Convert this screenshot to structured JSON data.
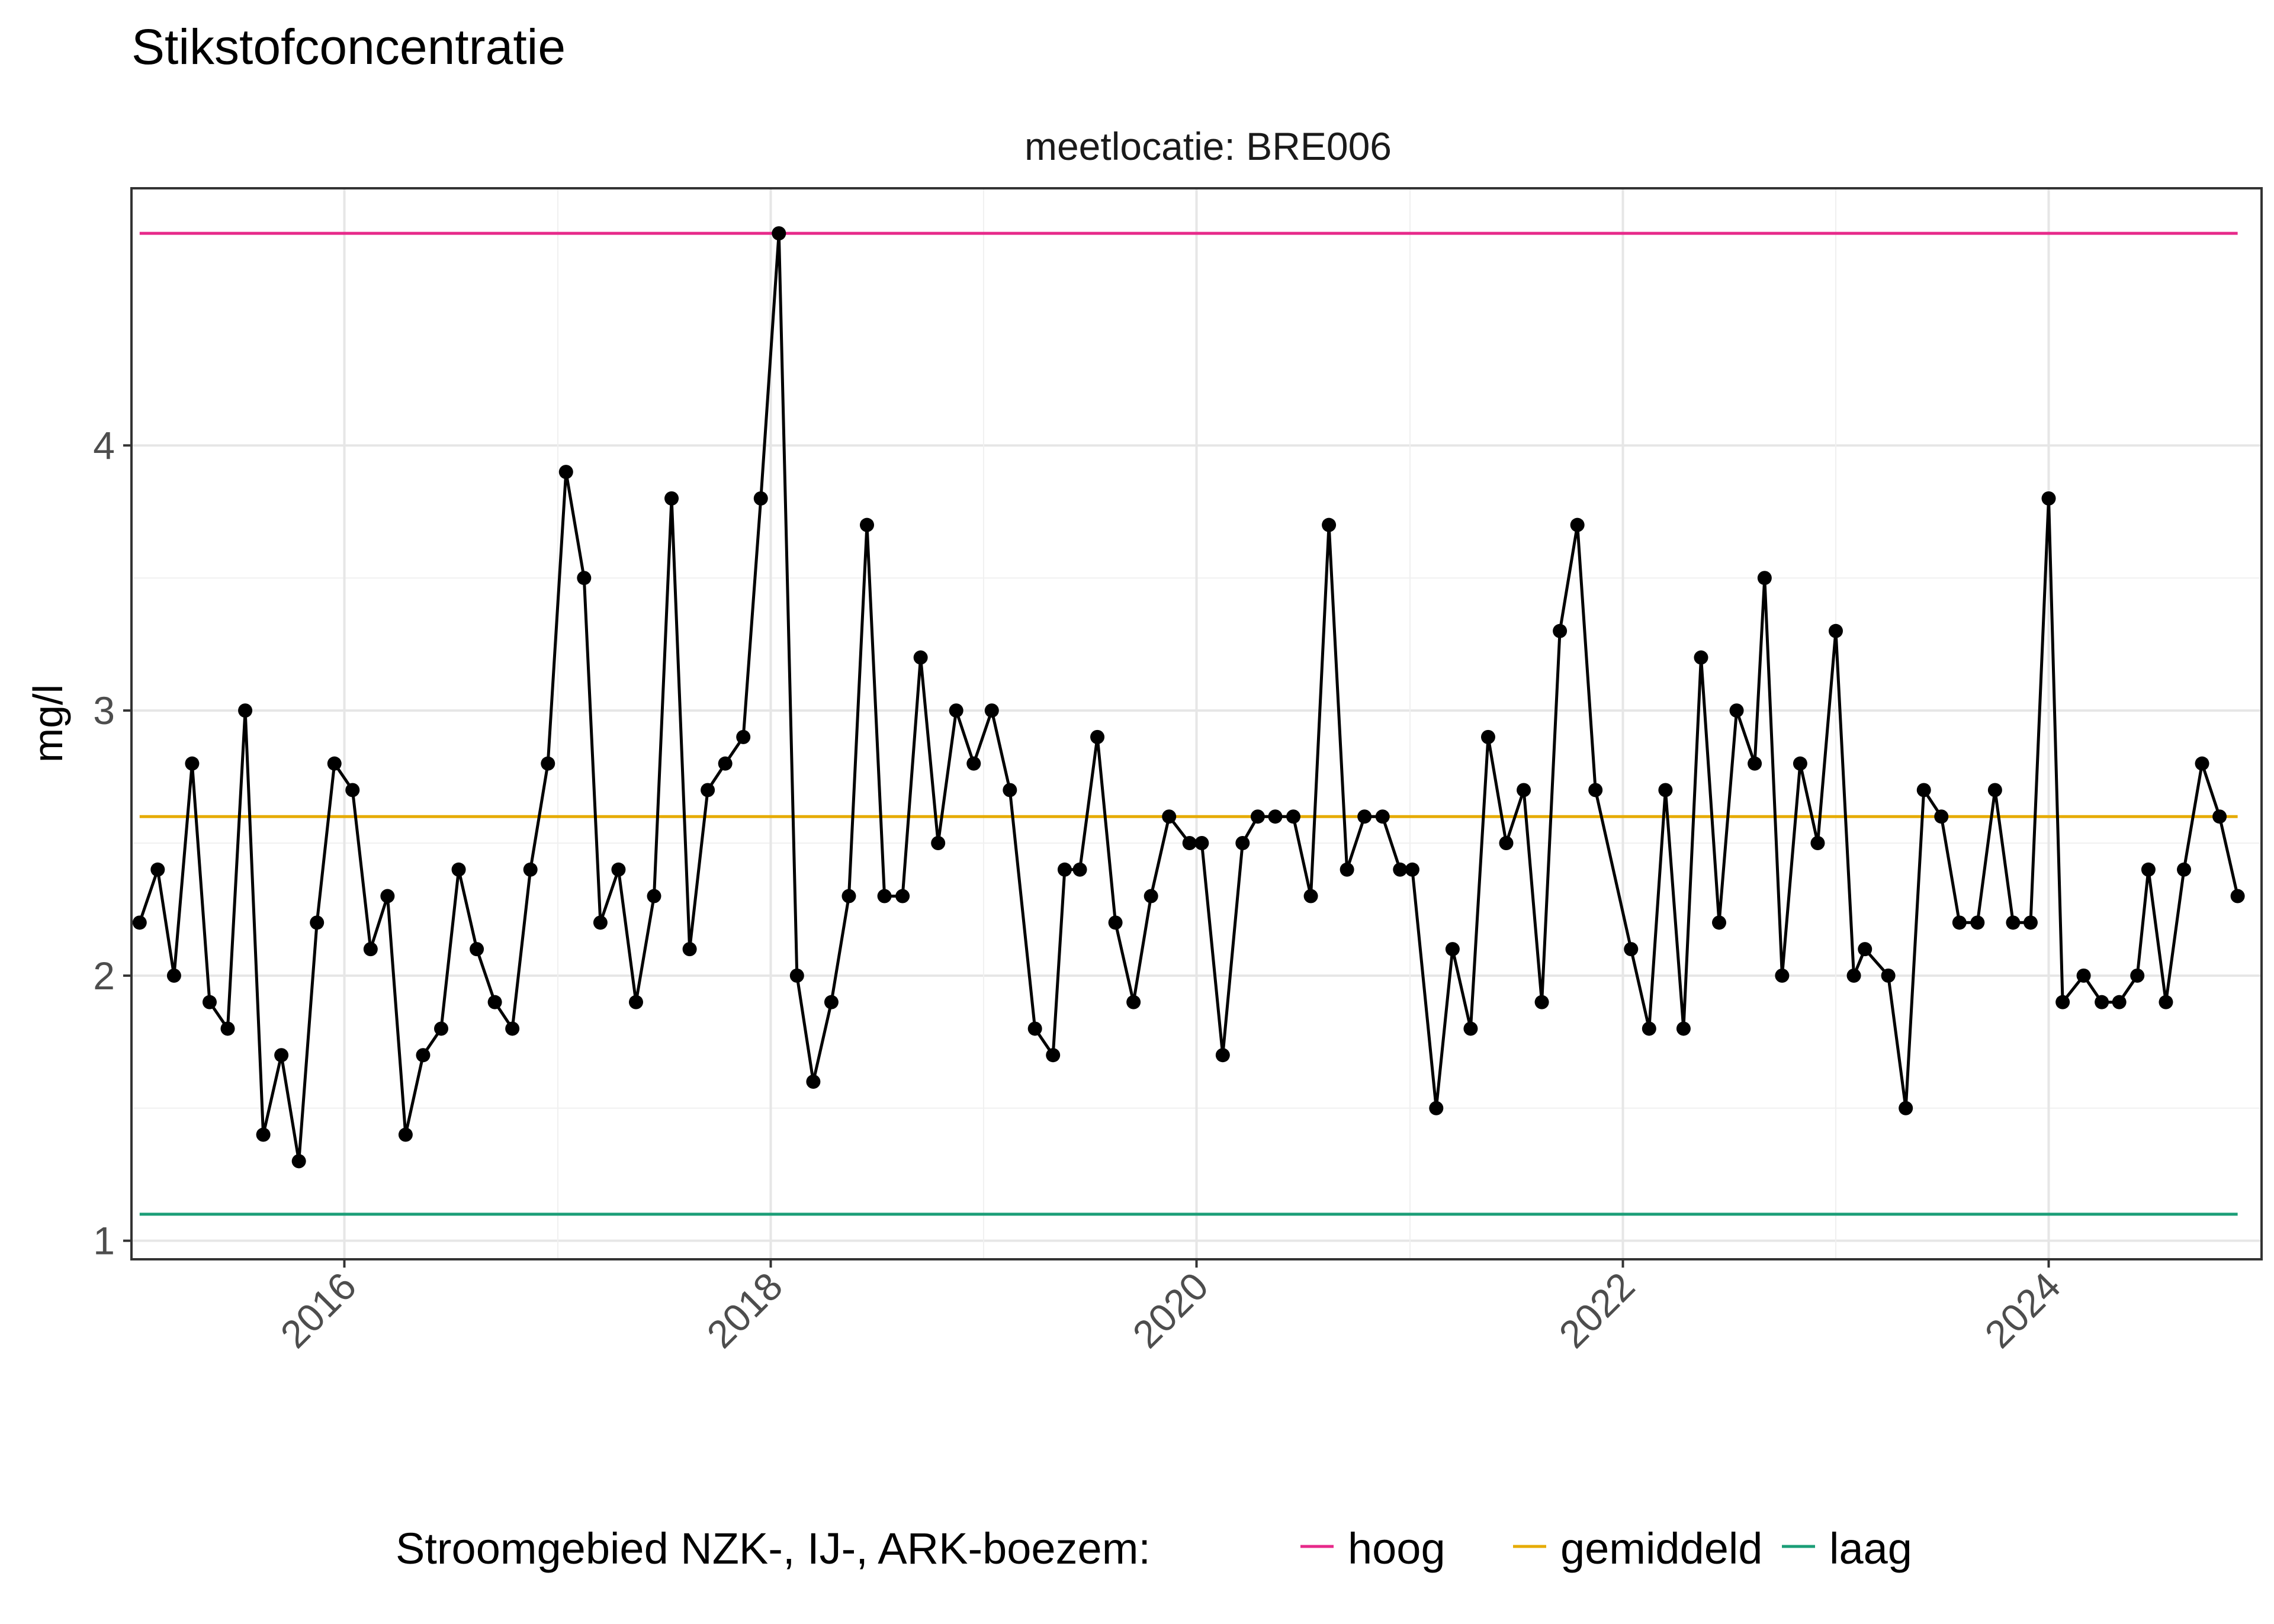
{
  "chart_data": {
    "type": "line",
    "title": "Stikstofconcentratie",
    "facet_label": "meetlocatie: BRE006",
    "ylabel": "mg/l",
    "xlabel": "",
    "x_range": [
      "2015-01-01",
      "2024-12-31"
    ],
    "x_ticks": [
      "2016",
      "2018",
      "2020",
      "2022",
      "2024"
    ],
    "y_ticks": [
      1,
      2,
      3,
      4
    ],
    "ylim": [
      0.93,
      4.97
    ],
    "grid": true,
    "legend_position": "bottom",
    "legend_title": "Stroomgebied NZK-, IJ-, ARK-boezem:",
    "reference_lines": [
      {
        "name": "hoog",
        "value": 4.8,
        "color": "#e7298a"
      },
      {
        "name": "gemiddeld",
        "value": 2.6,
        "color": "#e6ab02"
      },
      {
        "name": "laag",
        "value": 1.1,
        "color": "#1b9e77"
      }
    ],
    "series": [
      {
        "color": "#000000",
        "points": [
          [
            "2015-01-15",
            2.2
          ],
          [
            "2015-02-15",
            2.4
          ],
          [
            "2015-03-15",
            2.0
          ],
          [
            "2015-04-15",
            2.8
          ],
          [
            "2015-05-15",
            1.9
          ],
          [
            "2015-06-15",
            1.8
          ],
          [
            "2015-07-15",
            3.0
          ],
          [
            "2015-08-15",
            1.4
          ],
          [
            "2015-09-15",
            1.7
          ],
          [
            "2015-10-15",
            1.3
          ],
          [
            "2015-11-15",
            2.2
          ],
          [
            "2015-12-15",
            2.8
          ],
          [
            "2016-01-15",
            2.7
          ],
          [
            "2016-02-15",
            2.1
          ],
          [
            "2016-03-15",
            2.3
          ],
          [
            "2016-04-15",
            1.4
          ],
          [
            "2016-05-15",
            1.7
          ],
          [
            "2016-06-15",
            1.8
          ],
          [
            "2016-07-15",
            2.4
          ],
          [
            "2016-08-15",
            2.1
          ],
          [
            "2016-09-15",
            1.9
          ],
          [
            "2016-10-15",
            1.8
          ],
          [
            "2016-11-15",
            2.4
          ],
          [
            "2016-12-15",
            2.8
          ],
          [
            "2017-01-15",
            3.9
          ],
          [
            "2017-02-15",
            3.5
          ],
          [
            "2017-03-15",
            2.2
          ],
          [
            "2017-04-15",
            2.4
          ],
          [
            "2017-05-15",
            1.9
          ],
          [
            "2017-06-15",
            2.3
          ],
          [
            "2017-07-15",
            3.8
          ],
          [
            "2017-08-15",
            2.1
          ],
          [
            "2017-09-15",
            2.7
          ],
          [
            "2017-10-15",
            2.8
          ],
          [
            "2017-11-15",
            2.9
          ],
          [
            "2017-12-15",
            3.8
          ],
          [
            "2018-01-15",
            4.8
          ],
          [
            "2018-02-15",
            2.0
          ],
          [
            "2018-03-15",
            1.6
          ],
          [
            "2018-04-15",
            1.9
          ],
          [
            "2018-05-15",
            2.3
          ],
          [
            "2018-06-15",
            3.7
          ],
          [
            "2018-07-15",
            2.3
          ],
          [
            "2018-08-15",
            2.3
          ],
          [
            "2018-09-15",
            3.2
          ],
          [
            "2018-10-15",
            2.5
          ],
          [
            "2018-11-15",
            3.0
          ],
          [
            "2018-12-15",
            2.8
          ],
          [
            "2019-01-15",
            3.0
          ],
          [
            "2019-02-15",
            2.7
          ],
          [
            "2019-03-30",
            1.8
          ],
          [
            "2019-04-30",
            1.7
          ],
          [
            "2019-05-20",
            2.4
          ],
          [
            "2019-06-15",
            2.4
          ],
          [
            "2019-07-15",
            2.9
          ],
          [
            "2019-08-15",
            2.2
          ],
          [
            "2019-09-15",
            1.9
          ],
          [
            "2019-10-15",
            2.3
          ],
          [
            "2019-11-15",
            2.6
          ],
          [
            "2019-12-20",
            2.5
          ],
          [
            "2020-01-10",
            2.5
          ],
          [
            "2020-02-15",
            1.7
          ],
          [
            "2020-03-20",
            2.5
          ],
          [
            "2020-04-15",
            2.6
          ],
          [
            "2020-05-15",
            2.6
          ],
          [
            "2020-06-15",
            2.6
          ],
          [
            "2020-07-15",
            2.3
          ],
          [
            "2020-08-15",
            3.7
          ],
          [
            "2020-09-15",
            2.4
          ],
          [
            "2020-10-15",
            2.6
          ],
          [
            "2020-11-15",
            2.6
          ],
          [
            "2020-12-15",
            2.4
          ],
          [
            "2021-01-05",
            2.4
          ],
          [
            "2021-02-15",
            1.5
          ],
          [
            "2021-03-15",
            2.1
          ],
          [
            "2021-04-15",
            1.8
          ],
          [
            "2021-05-15",
            2.9
          ],
          [
            "2021-06-15",
            2.5
          ],
          [
            "2021-07-15",
            2.7
          ],
          [
            "2021-08-15",
            1.9
          ],
          [
            "2021-09-15",
            3.3
          ],
          [
            "2021-10-15",
            3.7
          ],
          [
            "2021-11-15",
            2.7
          ],
          [
            "2022-01-15",
            2.1
          ],
          [
            "2022-02-15",
            1.8
          ],
          [
            "2022-03-15",
            2.7
          ],
          [
            "2022-04-15",
            1.8
          ],
          [
            "2022-05-15",
            3.2
          ],
          [
            "2022-06-15",
            2.2
          ],
          [
            "2022-07-15",
            3.0
          ],
          [
            "2022-08-15",
            2.8
          ],
          [
            "2022-09-01",
            3.5
          ],
          [
            "2022-10-01",
            2.0
          ],
          [
            "2022-11-01",
            2.8
          ],
          [
            "2022-12-01",
            2.5
          ],
          [
            "2023-01-01",
            3.3
          ],
          [
            "2023-02-01",
            2.0
          ],
          [
            "2023-02-20",
            2.1
          ],
          [
            "2023-04-01",
            2.0
          ],
          [
            "2023-05-01",
            1.5
          ],
          [
            "2023-06-01",
            2.7
          ],
          [
            "2023-07-01",
            2.6
          ],
          [
            "2023-08-01",
            2.2
          ],
          [
            "2023-09-01",
            2.2
          ],
          [
            "2023-10-01",
            2.7
          ],
          [
            "2023-11-01",
            2.2
          ],
          [
            "2023-12-01",
            2.2
          ],
          [
            "2024-01-01",
            3.8
          ],
          [
            "2024-01-25",
            1.9
          ],
          [
            "2024-03-01",
            2.0
          ],
          [
            "2024-04-01",
            1.9
          ],
          [
            "2024-05-01",
            1.9
          ],
          [
            "2024-06-01",
            2.0
          ],
          [
            "2024-06-20",
            2.4
          ],
          [
            "2024-07-20",
            1.9
          ],
          [
            "2024-08-20",
            2.4
          ],
          [
            "2024-09-20",
            2.8
          ],
          [
            "2024-10-20",
            2.6
          ],
          [
            "2024-11-20",
            2.3
          ]
        ]
      }
    ]
  }
}
